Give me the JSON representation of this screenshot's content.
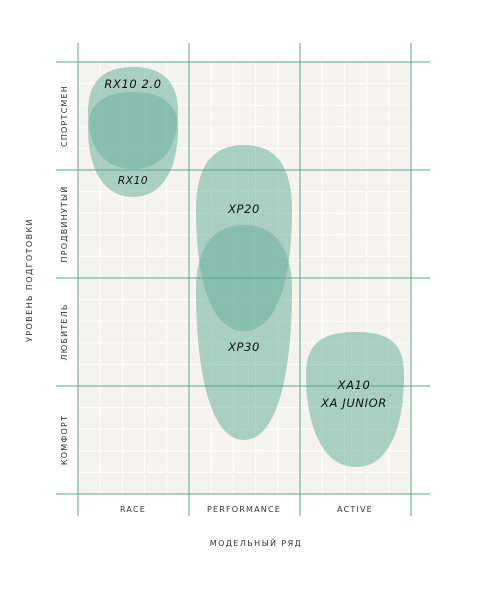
{
  "colors": {
    "background": "#f4f3ef",
    "grid_major": "#5aa592",
    "grid_minor": "#ffffff",
    "blob_fill": "#6bb19c",
    "blob_fill_dark": "#5a9f8a",
    "label_text": "#111111",
    "axis_text": "#333333"
  },
  "axes": {
    "x_title": "МОДЕЛЬНЫЙ РЯД",
    "y_title": "УРОВЕНЬ ПОДГОТОВКИ"
  },
  "chart_data": {
    "type": "scatter",
    "x_categories": [
      "RACE",
      "PERFORMANCE",
      "ACTIVE"
    ],
    "y_categories": [
      "СПОРТСМЕН",
      "ПРОДВИНУТЫЙ",
      "ЛЮБИТЕЛЬ",
      "КОМФОРТ"
    ],
    "products": [
      {
        "label": "RX10 2.0",
        "column": "RACE",
        "level_range": [
          "СПОРТСМЕН",
          "СПОРТСМЕН"
        ]
      },
      {
        "label": "RX10",
        "column": "RACE",
        "level_range": [
          "СПОРТСМЕН",
          "ПРОДВИНУТЫЙ"
        ]
      },
      {
        "label": "XP20",
        "column": "PERFORMANCE",
        "level_range": [
          "ПРОДВИНУТЫЙ",
          "ЛЮБИТЕЛЬ"
        ]
      },
      {
        "label": "XP30",
        "column": "PERFORMANCE",
        "level_range": [
          "ПРОДВИНУТЫЙ",
          "КОМФОРТ"
        ]
      },
      {
        "label_lines": [
          "XA10",
          "XA JUNIOR"
        ],
        "column": "ACTIVE",
        "level_range": [
          "ЛЮБИТЕЛЬ",
          "КОМФОРТ"
        ]
      }
    ]
  }
}
